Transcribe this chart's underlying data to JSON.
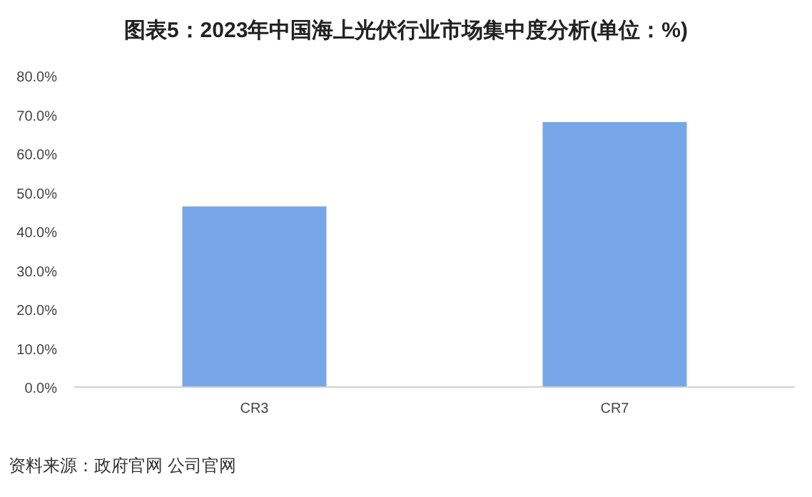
{
  "chart_data": {
    "type": "bar",
    "title": "图表5：2023年中国海上光伏行业市场集中度分析(单位：%)",
    "categories": [
      "CR3",
      "CR7"
    ],
    "values": [
      46.4,
      68.1
    ],
    "color": "#76a6e8",
    "ylim": [
      0,
      80
    ],
    "yticks": [
      {
        "value": 0,
        "label": "0.0%"
      },
      {
        "value": 10,
        "label": "10.0%"
      },
      {
        "value": 20,
        "label": "20.0%"
      },
      {
        "value": 30,
        "label": "30.0%"
      },
      {
        "value": 40,
        "label": "40.0%"
      },
      {
        "value": 50,
        "label": "50.0%"
      },
      {
        "value": 60,
        "label": "60.0%"
      },
      {
        "value": 70,
        "label": "70.0%"
      },
      {
        "value": 80,
        "label": "80.0%"
      }
    ],
    "grid": false,
    "annotations": [
      "资料来源：政府官网 公司官网"
    ]
  }
}
